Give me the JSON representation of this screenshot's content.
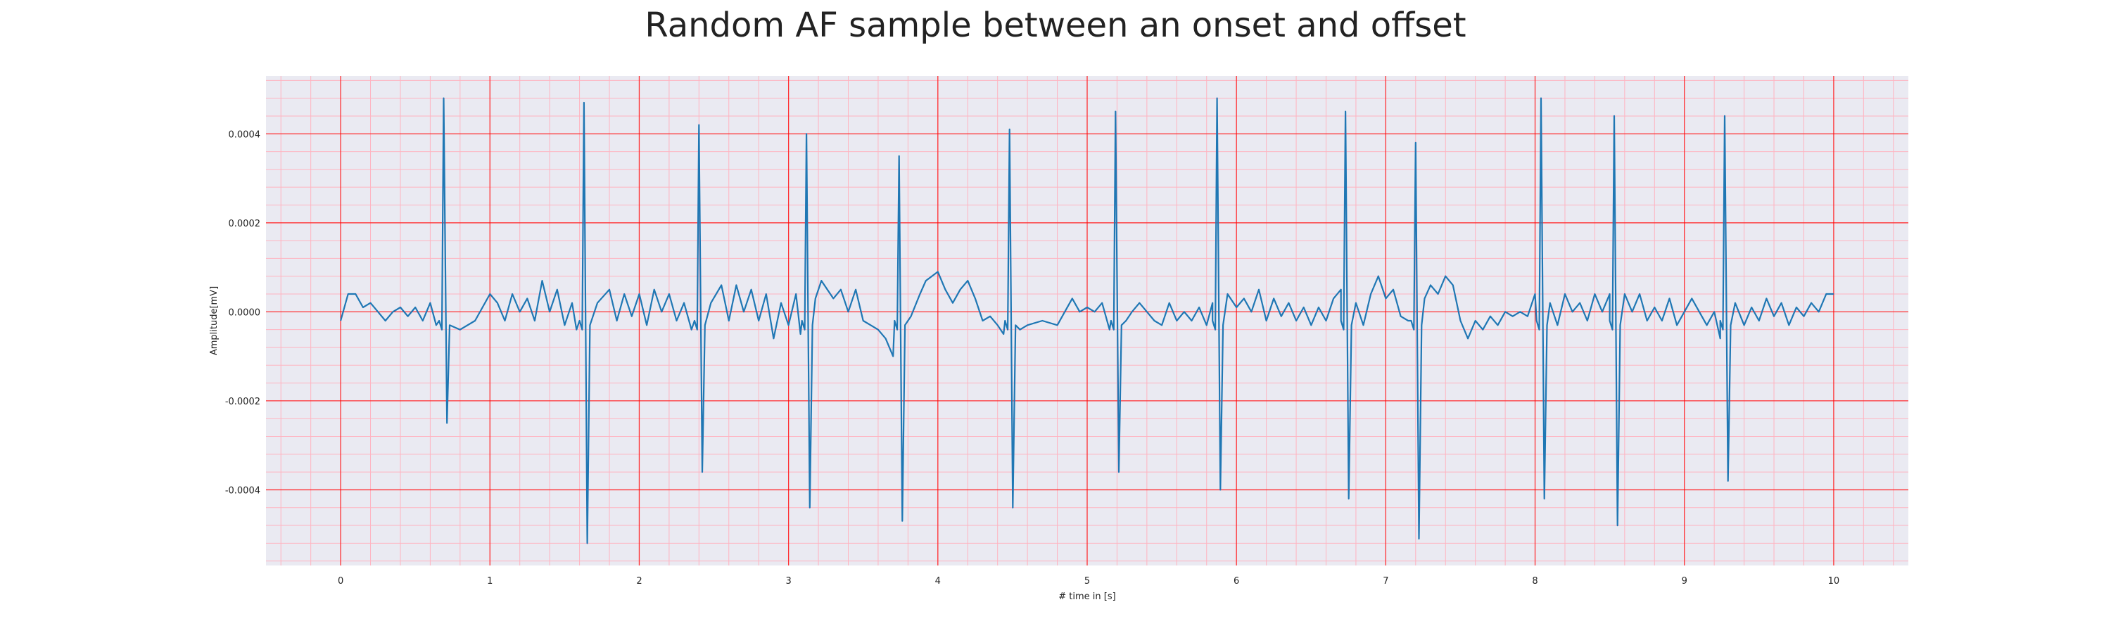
{
  "chart_data": {
    "type": "line",
    "title": "Random AF sample between an onset and offset",
    "xlabel": "# time in [s]",
    "ylabel": "Amplitude[mV]",
    "xlim": [
      -0.5,
      10.5
    ],
    "ylim": [
      -0.00057,
      0.00053
    ],
    "x_ticks": [
      0,
      1,
      2,
      3,
      4,
      5,
      6,
      7,
      8,
      9,
      10
    ],
    "x_tick_labels": [
      "0",
      "1",
      "2",
      "3",
      "4",
      "5",
      "6",
      "7",
      "8",
      "9",
      "10"
    ],
    "y_ticks": [
      -0.0004,
      -0.0002,
      0.0,
      0.0002,
      0.0004
    ],
    "y_tick_labels": [
      "-0.0004",
      "-0.0002",
      "0.0000",
      "0.0002",
      "0.0004"
    ],
    "grid": true,
    "minor_grid": true,
    "colors": {
      "line": "#1f77b4",
      "background": "#eaeaf2",
      "major_grid": "#ff0000",
      "minor_grid": "#ffb3c0"
    },
    "series": [
      {
        "beats": [
          {
            "t": 0.69,
            "peak": 0.00048,
            "trough": -0.00025
          },
          {
            "t": 1.63,
            "peak": 0.00047,
            "trough": -0.00052
          },
          {
            "t": 2.4,
            "peak": 0.00042,
            "trough": -0.00036
          },
          {
            "t": 3.12,
            "peak": 0.0004,
            "trough": -0.00044
          },
          {
            "t": 3.74,
            "peak": 0.00035,
            "trough": -0.00047
          },
          {
            "t": 4.48,
            "peak": 0.00041,
            "trough": -0.00044
          },
          {
            "t": 5.19,
            "peak": 0.00045,
            "trough": -0.00036
          },
          {
            "t": 5.87,
            "peak": 0.00048,
            "trough": -0.0004
          },
          {
            "t": 6.73,
            "peak": 0.00045,
            "trough": -0.00042
          },
          {
            "t": 7.2,
            "peak": 0.00038,
            "trough": -0.00051
          },
          {
            "t": 8.04,
            "peak": 0.00048,
            "trough": -0.00042
          },
          {
            "t": 8.53,
            "peak": 0.00044,
            "trough": -0.00048
          },
          {
            "t": 9.27,
            "peak": 0.00044,
            "trough": -0.00038
          }
        ],
        "baseline_points": [
          [
            0.0,
            -2e-05
          ],
          [
            0.05,
            4e-05
          ],
          [
            0.1,
            4e-05
          ],
          [
            0.15,
            1e-05
          ],
          [
            0.2,
            2e-05
          ],
          [
            0.25,
            0.0
          ],
          [
            0.3,
            -2e-05
          ],
          [
            0.35,
            0.0
          ],
          [
            0.4,
            1e-05
          ],
          [
            0.45,
            -1e-05
          ],
          [
            0.5,
            1e-05
          ],
          [
            0.55,
            -2e-05
          ],
          [
            0.6,
            2e-05
          ],
          [
            0.64,
            -3e-05
          ],
          [
            0.8,
            -4e-05
          ],
          [
            0.9,
            -2e-05
          ],
          [
            1.0,
            4e-05
          ],
          [
            1.05,
            2e-05
          ],
          [
            1.1,
            -2e-05
          ],
          [
            1.15,
            4e-05
          ],
          [
            1.2,
            0.0
          ],
          [
            1.25,
            3e-05
          ],
          [
            1.3,
            -2e-05
          ],
          [
            1.35,
            7e-05
          ],
          [
            1.4,
            0.0
          ],
          [
            1.45,
            5e-05
          ],
          [
            1.5,
            -3e-05
          ],
          [
            1.55,
            2e-05
          ],
          [
            1.58,
            -4e-05
          ],
          [
            1.72,
            2e-05
          ],
          [
            1.8,
            5e-05
          ],
          [
            1.85,
            -2e-05
          ],
          [
            1.9,
            4e-05
          ],
          [
            1.95,
            -1e-05
          ],
          [
            2.0,
            4e-05
          ],
          [
            2.05,
            -3e-05
          ],
          [
            2.1,
            5e-05
          ],
          [
            2.15,
            0.0
          ],
          [
            2.2,
            4e-05
          ],
          [
            2.25,
            -2e-05
          ],
          [
            2.3,
            2e-05
          ],
          [
            2.35,
            -4e-05
          ],
          [
            2.48,
            2e-05
          ],
          [
            2.55,
            6e-05
          ],
          [
            2.6,
            -2e-05
          ],
          [
            2.65,
            6e-05
          ],
          [
            2.7,
            0.0
          ],
          [
            2.75,
            5e-05
          ],
          [
            2.8,
            -2e-05
          ],
          [
            2.85,
            4e-05
          ],
          [
            2.9,
            -6e-05
          ],
          [
            2.95,
            2e-05
          ],
          [
            3.0,
            -3e-05
          ],
          [
            3.05,
            4e-05
          ],
          [
            3.08,
            -5e-05
          ],
          [
            3.18,
            3e-05
          ],
          [
            3.22,
            7e-05
          ],
          [
            3.3,
            3e-05
          ],
          [
            3.35,
            5e-05
          ],
          [
            3.4,
            0.0
          ],
          [
            3.45,
            5e-05
          ],
          [
            3.5,
            -2e-05
          ],
          [
            3.55,
            -3e-05
          ],
          [
            3.6,
            -4e-05
          ],
          [
            3.65,
            -6e-05
          ],
          [
            3.7,
            -0.0001
          ],
          [
            3.82,
            -1e-05
          ],
          [
            3.88,
            4e-05
          ],
          [
            3.92,
            7e-05
          ],
          [
            3.96,
            8e-05
          ],
          [
            4.0,
            9e-05
          ],
          [
            4.05,
            5e-05
          ],
          [
            4.1,
            2e-05
          ],
          [
            4.15,
            5e-05
          ],
          [
            4.2,
            7e-05
          ],
          [
            4.25,
            3e-05
          ],
          [
            4.3,
            -2e-05
          ],
          [
            4.35,
            -1e-05
          ],
          [
            4.4,
            -3e-05
          ],
          [
            4.44,
            -5e-05
          ],
          [
            4.55,
            -4e-05
          ],
          [
            4.6,
            -3e-05
          ],
          [
            4.7,
            -2e-05
          ],
          [
            4.8,
            -3e-05
          ],
          [
            4.85,
            0.0
          ],
          [
            4.9,
            3e-05
          ],
          [
            4.95,
            0.0
          ],
          [
            5.0,
            1e-05
          ],
          [
            5.05,
            0.0
          ],
          [
            5.1,
            2e-05
          ],
          [
            5.15,
            -4e-05
          ],
          [
            5.26,
            -2e-05
          ],
          [
            5.3,
            0.0
          ],
          [
            5.35,
            2e-05
          ],
          [
            5.4,
            0.0
          ],
          [
            5.45,
            -2e-05
          ],
          [
            5.5,
            -3e-05
          ],
          [
            5.55,
            2e-05
          ],
          [
            5.6,
            -2e-05
          ],
          [
            5.65,
            0.0
          ],
          [
            5.7,
            -2e-05
          ],
          [
            5.75,
            1e-05
          ],
          [
            5.8,
            -3e-05
          ],
          [
            5.84,
            2e-05
          ],
          [
            5.94,
            4e-05
          ],
          [
            6.0,
            1e-05
          ],
          [
            6.05,
            3e-05
          ],
          [
            6.1,
            0.0
          ],
          [
            6.15,
            5e-05
          ],
          [
            6.2,
            -2e-05
          ],
          [
            6.25,
            3e-05
          ],
          [
            6.3,
            -1e-05
          ],
          [
            6.35,
            2e-05
          ],
          [
            6.4,
            -2e-05
          ],
          [
            6.45,
            1e-05
          ],
          [
            6.5,
            -3e-05
          ],
          [
            6.55,
            1e-05
          ],
          [
            6.6,
            -2e-05
          ],
          [
            6.65,
            3e-05
          ],
          [
            6.7,
            5e-05
          ],
          [
            6.8,
            2e-05
          ],
          [
            6.85,
            -3e-05
          ],
          [
            6.9,
            4e-05
          ],
          [
            6.95,
            8e-05
          ],
          [
            7.0,
            3e-05
          ],
          [
            7.05,
            5e-05
          ],
          [
            7.1,
            -1e-05
          ],
          [
            7.15,
            -2e-05
          ],
          [
            7.26,
            3e-05
          ],
          [
            7.3,
            6e-05
          ],
          [
            7.35,
            4e-05
          ],
          [
            7.4,
            8e-05
          ],
          [
            7.45,
            6e-05
          ],
          [
            7.5,
            -2e-05
          ],
          [
            7.55,
            -6e-05
          ],
          [
            7.6,
            -2e-05
          ],
          [
            7.65,
            -4e-05
          ],
          [
            7.7,
            -1e-05
          ],
          [
            7.75,
            -3e-05
          ],
          [
            7.8,
            0.0
          ],
          [
            7.85,
            -1e-05
          ],
          [
            7.9,
            0.0
          ],
          [
            7.95,
            -1e-05
          ],
          [
            8.0,
            4e-05
          ],
          [
            8.1,
            2e-05
          ],
          [
            8.15,
            -3e-05
          ],
          [
            8.2,
            4e-05
          ],
          [
            8.25,
            0.0
          ],
          [
            8.3,
            2e-05
          ],
          [
            8.35,
            -2e-05
          ],
          [
            8.4,
            4e-05
          ],
          [
            8.45,
            0.0
          ],
          [
            8.5,
            4e-05
          ],
          [
            8.6,
            4e-05
          ],
          [
            8.65,
            0.0
          ],
          [
            8.7,
            4e-05
          ],
          [
            8.75,
            -2e-05
          ],
          [
            8.8,
            1e-05
          ],
          [
            8.85,
            -2e-05
          ],
          [
            8.9,
            3e-05
          ],
          [
            8.95,
            -3e-05
          ],
          [
            9.0,
            0.0
          ],
          [
            9.05,
            3e-05
          ],
          [
            9.1,
            0.0
          ],
          [
            9.15,
            -3e-05
          ],
          [
            9.2,
            0.0
          ],
          [
            9.24,
            -6e-05
          ],
          [
            9.34,
            2e-05
          ],
          [
            9.4,
            -3e-05
          ],
          [
            9.45,
            1e-05
          ],
          [
            9.5,
            -2e-05
          ],
          [
            9.55,
            3e-05
          ],
          [
            9.6,
            -1e-05
          ],
          [
            9.65,
            2e-05
          ],
          [
            9.7,
            -3e-05
          ],
          [
            9.75,
            1e-05
          ],
          [
            9.8,
            -1e-05
          ],
          [
            9.85,
            2e-05
          ],
          [
            9.9,
            0.0
          ],
          [
            9.95,
            4e-05
          ],
          [
            10.0,
            4e-05
          ]
        ]
      }
    ]
  }
}
